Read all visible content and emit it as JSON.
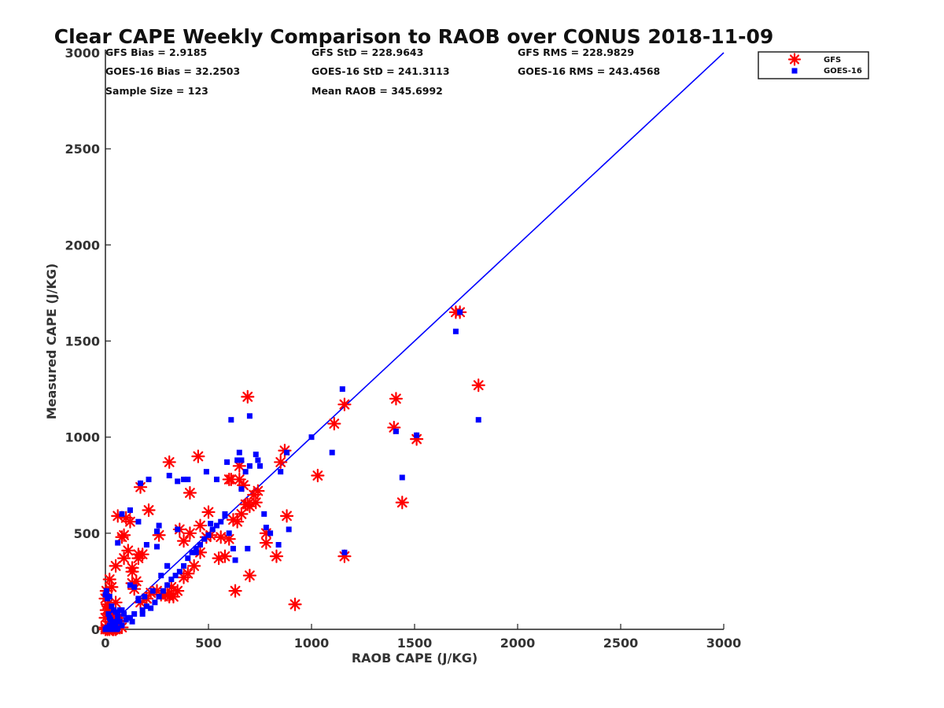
{
  "chart_data": {
    "type": "scatter",
    "title": "Clear CAPE Weekly Comparison to RAOB over CONUS 2018-11-09",
    "xlabel": "RAOB CAPE (J/KG)",
    "ylabel": "Measured CAPE (J/KG)",
    "xlim": [
      0,
      3000
    ],
    "ylim": [
      0,
      3000
    ],
    "xticks": [
      "0",
      "500",
      "1000",
      "1500",
      "2000",
      "2500",
      "3000"
    ],
    "yticks": [
      "0",
      "500",
      "1000",
      "1500",
      "2000",
      "2500",
      "3000"
    ],
    "grid": false,
    "legend_position": "top-right",
    "reference_line": {
      "x": [
        0,
        3000
      ],
      "y": [
        0,
        3000
      ],
      "color": "#0000ff"
    },
    "stats": [
      {
        "key": "gfs_bias",
        "text": "GFS Bias = 2.9185"
      },
      {
        "key": "gfs_std",
        "text": "GFS StD = 228.9643"
      },
      {
        "key": "gfs_rms",
        "text": "GFS RMS = 228.9829"
      },
      {
        "key": "goes_bias",
        "text": "GOES-16 Bias = 32.2503"
      },
      {
        "key": "goes_std",
        "text": "GOES-16 StD = 241.3113"
      },
      {
        "key": "goes_rms",
        "text": "GOES-16 RMS = 243.4568"
      },
      {
        "key": "sample_size",
        "text": "Sample Size = 123"
      },
      {
        "key": "mean_raob",
        "text": "Mean RAOB = 345.6992"
      }
    ],
    "series": [
      {
        "name": "GFS",
        "marker": "asterisk",
        "color": "#ff0000",
        "x": [
          0,
          5,
          10,
          15,
          20,
          25,
          30,
          35,
          40,
          45,
          50,
          55,
          60,
          0,
          5,
          10,
          0,
          20,
          40,
          60,
          15,
          30,
          50,
          70,
          0,
          10,
          25,
          40,
          50,
          60,
          80,
          5,
          20,
          30,
          50,
          90,
          110,
          130,
          150,
          170,
          200,
          220,
          250,
          270,
          300,
          320,
          350,
          380,
          400,
          430,
          460,
          490,
          510,
          550,
          580,
          600,
          620,
          640,
          660,
          680,
          700,
          720,
          740,
          780,
          90,
          130,
          160,
          210,
          120,
          50,
          140,
          180,
          60,
          100,
          80,
          130,
          160,
          170,
          200,
          260,
          290,
          310,
          330,
          360,
          380,
          410,
          450,
          500,
          560,
          610,
          650,
          690,
          730,
          780,
          830,
          850,
          870,
          310,
          410,
          460,
          600,
          650,
          670,
          700,
          630,
          690,
          880,
          920,
          1030,
          1110,
          1160,
          1160,
          1400,
          1410,
          1440,
          1510,
          1700,
          1720,
          1810
        ],
        "y": [
          10,
          5,
          0,
          20,
          0,
          15,
          5,
          0,
          30,
          10,
          0,
          5,
          20,
          60,
          100,
          130,
          160,
          40,
          70,
          20,
          100,
          80,
          40,
          60,
          0,
          0,
          10,
          0,
          50,
          30,
          10,
          200,
          260,
          220,
          140,
          370,
          410,
          300,
          250,
          140,
          160,
          190,
          200,
          180,
          180,
          220,
          200,
          270,
          290,
          330,
          400,
          480,
          490,
          370,
          380,
          470,
          570,
          560,
          600,
          650,
          640,
          700,
          720,
          450,
          490,
          240,
          390,
          620,
          560,
          330,
          210,
          390,
          590,
          580,
          480,
          320,
          370,
          740,
          160,
          490,
          180,
          170,
          170,
          520,
          460,
          500,
          900,
          610,
          480,
          780,
          850,
          1210,
          660,
          500,
          380,
          870,
          930,
          870,
          710,
          540,
          780,
          780,
          750,
          280,
          200,
          650,
          590,
          130,
          800,
          1070,
          1170,
          380,
          1050,
          1200,
          660,
          990,
          1650,
          1650,
          1270
        ]
      },
      {
        "name": "GOES-16",
        "marker": "square",
        "color": "#0000ff",
        "x": [
          0,
          5,
          10,
          15,
          20,
          25,
          30,
          35,
          40,
          45,
          50,
          55,
          60,
          0,
          10,
          20,
          30,
          40,
          50,
          60,
          70,
          80,
          5,
          15,
          25,
          35,
          10,
          30,
          50,
          0,
          20,
          40,
          60,
          80,
          100,
          120,
          140,
          160,
          180,
          200,
          220,
          240,
          260,
          280,
          300,
          320,
          340,
          360,
          380,
          400,
          420,
          440,
          460,
          480,
          500,
          520,
          540,
          560,
          580,
          60,
          80,
          120,
          160,
          200,
          210,
          250,
          260,
          310,
          350,
          380,
          400,
          440,
          490,
          510,
          540,
          590,
          600,
          610,
          630,
          640,
          650,
          660,
          680,
          690,
          700,
          730,
          740,
          750,
          770,
          780,
          800,
          840,
          850,
          880,
          890,
          70,
          90,
          110,
          130,
          120,
          140,
          160,
          180,
          190,
          230,
          270,
          300,
          170,
          250,
          300,
          350,
          580,
          620,
          660,
          700,
          1000,
          1100,
          1150,
          1160,
          1410,
          1440,
          1510,
          1700,
          1720,
          1810
        ],
        "y": [
          0,
          5,
          10,
          0,
          20,
          15,
          5,
          30,
          0,
          10,
          20,
          0,
          5,
          180,
          160,
          170,
          120,
          100,
          90,
          60,
          40,
          20,
          200,
          80,
          50,
          30,
          0,
          10,
          40,
          0,
          60,
          30,
          80,
          100,
          50,
          60,
          80,
          150,
          100,
          120,
          110,
          140,
          170,
          200,
          230,
          260,
          280,
          300,
          330,
          370,
          400,
          420,
          440,
          470,
          490,
          520,
          540,
          560,
          590,
          450,
          600,
          620,
          560,
          440,
          780,
          510,
          540,
          800,
          770,
          780,
          780,
          400,
          820,
          550,
          780,
          870,
          500,
          1090,
          360,
          880,
          920,
          730,
          820,
          420,
          1110,
          910,
          880,
          850,
          600,
          530,
          500,
          440,
          820,
          920,
          520,
          100,
          80,
          60,
          40,
          230,
          220,
          160,
          80,
          170,
          200,
          280,
          330,
          760,
          430,
          330,
          520,
          600,
          420,
          880,
          850,
          1000,
          920,
          1250,
          400,
          1030,
          790,
          1010,
          1550,
          1650,
          1090
        ]
      }
    ]
  }
}
